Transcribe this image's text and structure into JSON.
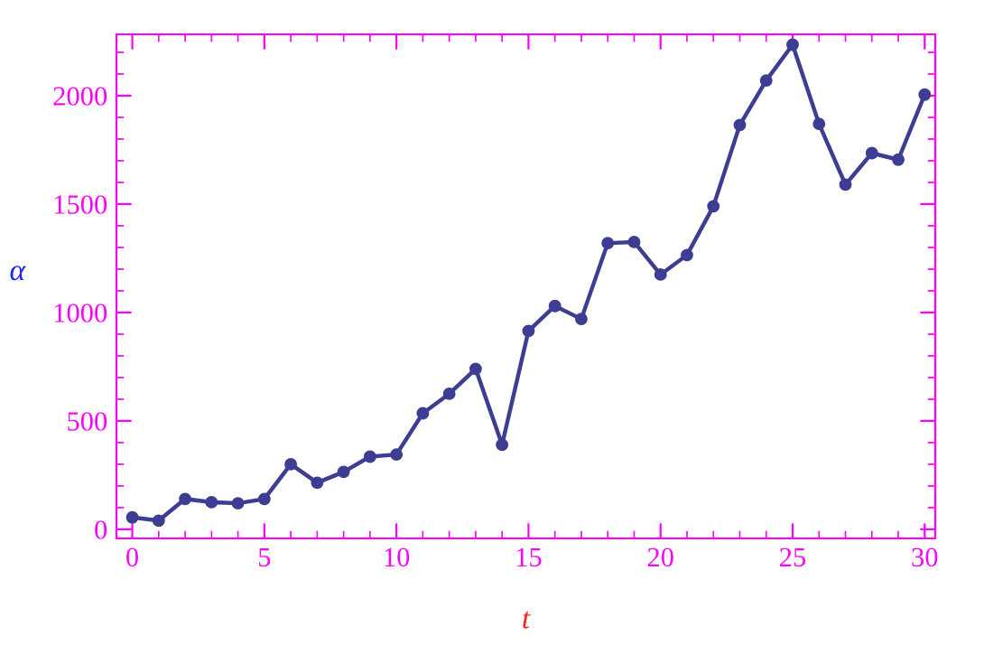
{
  "chart_data": {
    "type": "line",
    "xlabel": "t",
    "ylabel": "α",
    "marker": "circle",
    "line_style": "solid",
    "grid": false,
    "legend": false,
    "xlim": [
      -0.6,
      30.4
    ],
    "ylim": [
      -42,
      2283
    ],
    "xticks": [
      0,
      5,
      10,
      15,
      20,
      25,
      30
    ],
    "yticks": [
      0,
      500,
      1000,
      1500,
      2000
    ],
    "series": [
      {
        "color": "#3d3d94",
        "x": [
          0,
          1,
          2,
          3,
          4,
          5,
          6,
          7,
          8,
          9,
          10,
          11,
          12,
          13,
          14,
          15,
          16,
          17,
          18,
          19,
          20,
          21,
          22,
          23,
          24,
          25,
          26,
          27,
          28,
          29,
          30
        ],
        "values": [
          55,
          40,
          140,
          125,
          120,
          140,
          300,
          215,
          265,
          335,
          345,
          535,
          625,
          740,
          390,
          915,
          1030,
          970,
          1320,
          1325,
          1175,
          1265,
          1490,
          1865,
          2070,
          2235,
          1870,
          1590,
          1735,
          1705,
          2005
        ]
      }
    ]
  }
}
